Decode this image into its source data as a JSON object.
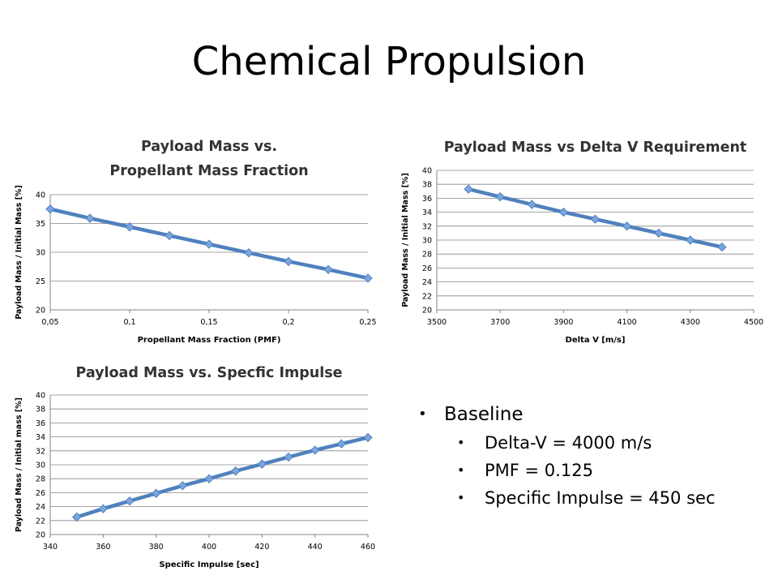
{
  "slide": {
    "title": "Chemical Propulsion"
  },
  "chart_data": [
    {
      "id": "pmf",
      "type": "line",
      "title": "Payload Mass vs. Propellant Mass Fraction",
      "title_lines": [
        "Payload Mass vs.",
        "Propellant Mass Fraction"
      ],
      "xlabel": "Propellant Mass Fraction (PMF)",
      "ylabel": "Payload Mass / Initial Mass [%]",
      "xlim": [
        0.05,
        0.25
      ],
      "ylim": [
        20,
        40
      ],
      "xticks": [
        0.05,
        0.1,
        0.15,
        0.2,
        0.25
      ],
      "xtick_labels": [
        "0,05",
        "0,1",
        "0,15",
        "0,2",
        "0,25"
      ],
      "yticks": [
        20,
        25,
        30,
        35,
        40
      ],
      "ytick_labels": [
        "20",
        "25",
        "30",
        "35",
        "40"
      ],
      "grid": "horizontal",
      "legend": "none",
      "series": [
        {
          "x": [
            0.05,
            0.075,
            0.1,
            0.125,
            0.15,
            0.175,
            0.2,
            0.225,
            0.25
          ],
          "values": [
            37.5,
            35.9,
            34.4,
            32.9,
            31.4,
            29.9,
            28.4,
            27.0,
            25.5
          ]
        }
      ]
    },
    {
      "id": "deltav",
      "type": "line",
      "title": "Payload Mass vs Delta V Requirement",
      "title_lines": [
        "Payload Mass vs Delta V Requirement"
      ],
      "xlabel": "Delta V [m/s]",
      "ylabel": "Payload Mass / Initial Mass [%]",
      "xlim": [
        3500,
        4500
      ],
      "ylim": [
        20,
        40
      ],
      "xticks": [
        3500,
        3700,
        3900,
        4100,
        4300,
        4500
      ],
      "xtick_labels": [
        "3500",
        "3700",
        "3900",
        "4100",
        "4300",
        "4500"
      ],
      "yticks": [
        20,
        22,
        24,
        26,
        28,
        30,
        32,
        34,
        36,
        38,
        40
      ],
      "ytick_labels": [
        "20",
        "22",
        "24",
        "26",
        "28",
        "30",
        "32",
        "34",
        "36",
        "38",
        "40"
      ],
      "grid": "horizontal",
      "legend": "none",
      "series": [
        {
          "x": [
            3600,
            3700,
            3800,
            3900,
            4000,
            4100,
            4200,
            4300,
            4400
          ],
          "values": [
            37.3,
            36.2,
            35.1,
            34.0,
            33.0,
            32.0,
            31.0,
            30.0,
            29.0
          ]
        }
      ]
    },
    {
      "id": "isp",
      "type": "line",
      "title": "Payload Mass vs. Specfic Impulse",
      "title_lines": [
        "Payload Mass vs. Specfic Impulse"
      ],
      "xlabel": "Specific Impulse [sec]",
      "ylabel": "Payload Mass / Initial mass [%]",
      "xlim": [
        340,
        460
      ],
      "ylim": [
        20,
        40
      ],
      "xticks": [
        340,
        360,
        380,
        400,
        420,
        440,
        460
      ],
      "xtick_labels": [
        "340",
        "360",
        "380",
        "400",
        "420",
        "440",
        "460"
      ],
      "yticks": [
        20,
        22,
        24,
        26,
        28,
        30,
        32,
        34,
        36,
        38,
        40
      ],
      "ytick_labels": [
        "20",
        "22",
        "24",
        "26",
        "28",
        "30",
        "32",
        "34",
        "36",
        "38",
        "40"
      ],
      "grid": "horizontal",
      "legend": "none",
      "series": [
        {
          "x": [
            350,
            360,
            370,
            380,
            390,
            400,
            410,
            420,
            430,
            440,
            450,
            460
          ],
          "values": [
            22.5,
            23.7,
            24.8,
            25.9,
            27.0,
            28.0,
            29.1,
            30.1,
            31.1,
            32.1,
            33.0,
            33.9
          ]
        }
      ]
    }
  ],
  "colors": {
    "line": "#4f81bd",
    "marker_fill": "#7aa6e0",
    "grid": "#868686",
    "axis": "#868686",
    "text": "#000000"
  },
  "bullets": {
    "main": "Baseline",
    "sub": [
      "Delta-V = 4000 m/s",
      "PMF = 0.125",
      "Specific Impulse = 450 sec"
    ]
  }
}
